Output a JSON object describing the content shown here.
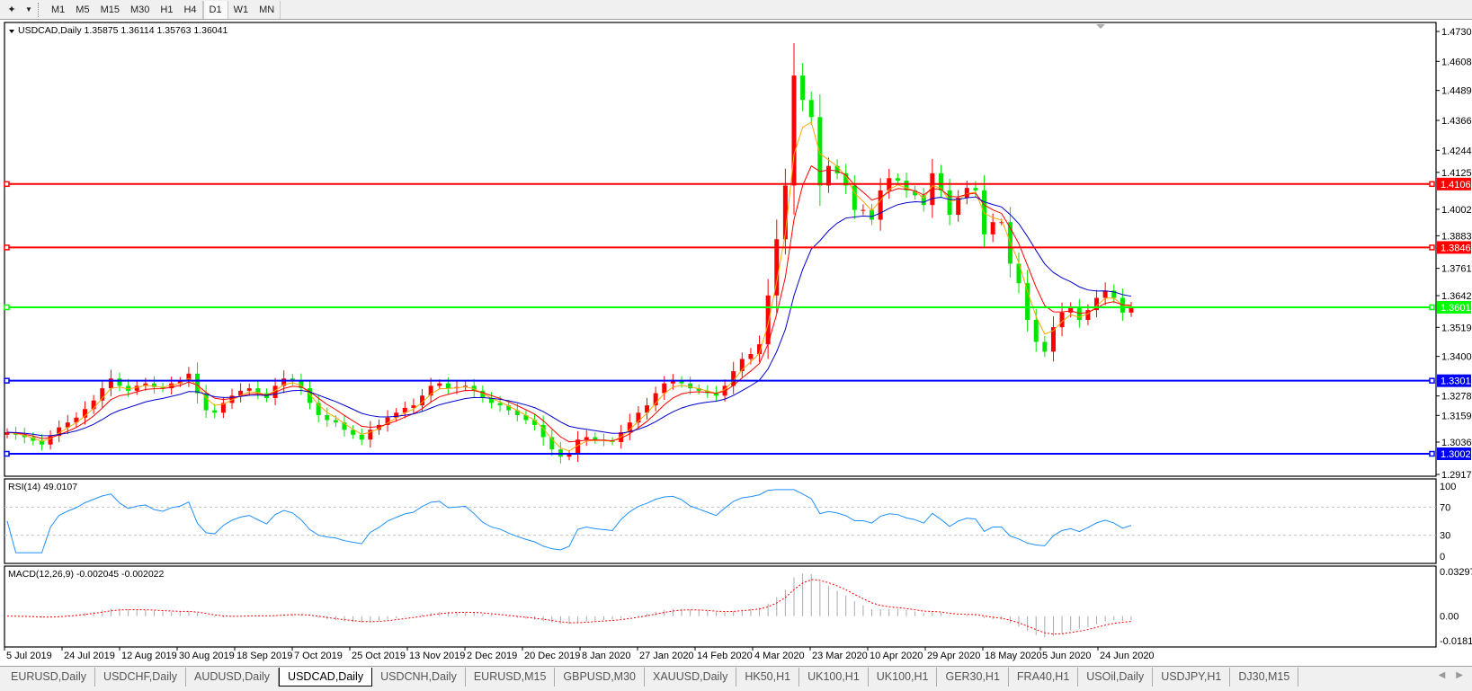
{
  "toolbar": {
    "timeframes": [
      {
        "label": "M1",
        "active": false
      },
      {
        "label": "M5",
        "active": false
      },
      {
        "label": "M15",
        "active": false
      },
      {
        "label": "M30",
        "active": false
      },
      {
        "label": "H1",
        "active": false
      },
      {
        "label": "H4",
        "active": false
      },
      {
        "label": "D1",
        "active": true
      },
      {
        "label": "W1",
        "active": false
      },
      {
        "label": "MN",
        "active": false
      }
    ]
  },
  "main_chart": {
    "header": "USDCAD,Daily  1.35875 1.36114 1.35763 1.36041",
    "bull_color": "#ff0000",
    "bear_color": "#00e600",
    "ma_colors": [
      "#ffa500",
      "#ff0000",
      "#0000cd"
    ]
  },
  "levels": [
    {
      "value": "1.41060",
      "price": 1.4106,
      "color": "#ff0000"
    },
    {
      "value": "1.38464",
      "price": 1.38464,
      "color": "#ff0000"
    },
    {
      "value": "1.36015",
      "price": 1.36015,
      "color": "#00ff00"
    },
    {
      "value": "1.33011",
      "price": 1.33011,
      "color": "#0000ff"
    },
    {
      "value": "1.30020",
      "price": 1.3002,
      "color": "#0000ff"
    }
  ],
  "rsi": {
    "header": "RSI(14) 49.0107",
    "levels": [
      "100",
      "70",
      "30",
      "0"
    ],
    "color": "#1e90ff"
  },
  "macd": {
    "header": "MACD(12,26,9) -0.002045 -0.002022",
    "ticks": [
      "0.032972",
      "0.00",
      "-0.01815"
    ]
  },
  "chart_data": {
    "type": "candlestick",
    "symbol": "USDCAD",
    "timeframe": "Daily",
    "price_ticks": [
      "1.47305",
      "1.46080",
      "1.44890",
      "1.43665",
      "1.42440",
      "1.41250",
      "1.40025",
      "1.38835",
      "1.37610",
      "1.36420",
      "1.35195",
      "1.34005",
      "1.32780",
      "1.31590",
      "1.30365",
      "1.29175"
    ],
    "ylim": [
      1.29175,
      1.47305
    ],
    "date_ticks": [
      "5 Jul 2019",
      "24 Jul 2019",
      "12 Aug 2019",
      "30 Aug 2019",
      "18 Sep 2019",
      "7 Oct 2019",
      "25 Oct 2019",
      "13 Nov 2019",
      "2 Dec 2019",
      "20 Dec 2019",
      "8 Jan 2020",
      "27 Jan 2020",
      "14 Feb 2020",
      "4 Mar 2020",
      "23 Mar 2020",
      "10 Apr 2020",
      "29 Apr 2020",
      "18 May 2020",
      "5 Jun 2020",
      "24 Jun 2020"
    ],
    "close": [
      1.309,
      1.308,
      1.307,
      1.3055,
      1.304,
      1.3075,
      1.311,
      1.313,
      1.315,
      1.3185,
      1.322,
      1.327,
      1.331,
      1.328,
      1.326,
      1.328,
      1.329,
      1.3275,
      1.327,
      1.329,
      1.33,
      1.333,
      1.325,
      1.318,
      1.317,
      1.321,
      1.324,
      1.326,
      1.327,
      1.325,
      1.323,
      1.328,
      1.331,
      1.33,
      1.327,
      1.321,
      1.316,
      1.314,
      1.313,
      1.31,
      1.308,
      1.306,
      1.31,
      1.312,
      1.315,
      1.317,
      1.319,
      1.32,
      1.324,
      1.328,
      1.329,
      1.327,
      1.3275,
      1.328,
      1.326,
      1.323,
      1.321,
      1.32,
      1.318,
      1.316,
      1.314,
      1.312,
      1.307,
      1.302,
      1.299,
      1.3,
      1.306,
      1.307,
      1.306,
      1.3055,
      1.305,
      1.309,
      1.313,
      1.317,
      1.32,
      1.325,
      1.329,
      1.33,
      1.329,
      1.327,
      1.326,
      1.325,
      1.324,
      1.328,
      1.334,
      1.339,
      1.341,
      1.345,
      1.365,
      1.388,
      1.41,
      1.455,
      1.445,
      1.438,
      1.41,
      1.418,
      1.415,
      1.41,
      1.4,
      1.4,
      1.396,
      1.408,
      1.413,
      1.412,
      1.408,
      1.406,
      1.402,
      1.415,
      1.408,
      1.398,
      1.405,
      1.409,
      1.408,
      1.39,
      1.395,
      1.395,
      1.378,
      1.37,
      1.355,
      1.346,
      1.342,
      1.352,
      1.358,
      1.36,
      1.355,
      1.359,
      1.364,
      1.367,
      1.364,
      1.358,
      1.3604
    ],
    "last": {
      "open": 1.35875,
      "high": 1.36114,
      "low": 1.35763,
      "close": 1.36041
    },
    "grid": false
  },
  "tabs": [
    {
      "label": "EURUSD,Daily",
      "active": false
    },
    {
      "label": "USDCHF,Daily",
      "active": false
    },
    {
      "label": "AUDUSD,Daily",
      "active": false
    },
    {
      "label": "USDCAD,Daily",
      "active": true
    },
    {
      "label": "USDCNH,Daily",
      "active": false
    },
    {
      "label": "EURUSD,M15",
      "active": false
    },
    {
      "label": "GBPUSD,M30",
      "active": false
    },
    {
      "label": "XAUUSD,Daily",
      "active": false
    },
    {
      "label": "HK50,H1",
      "active": false
    },
    {
      "label": "UK100,H1",
      "active": false
    },
    {
      "label": "UK100,H1",
      "active": false
    },
    {
      "label": "GER30,H1",
      "active": false
    },
    {
      "label": "FRA40,H1",
      "active": false
    },
    {
      "label": "USOil,Daily",
      "active": false
    },
    {
      "label": "USDJPY,H1",
      "active": false
    },
    {
      "label": "DJ30,M15",
      "active": false
    }
  ]
}
